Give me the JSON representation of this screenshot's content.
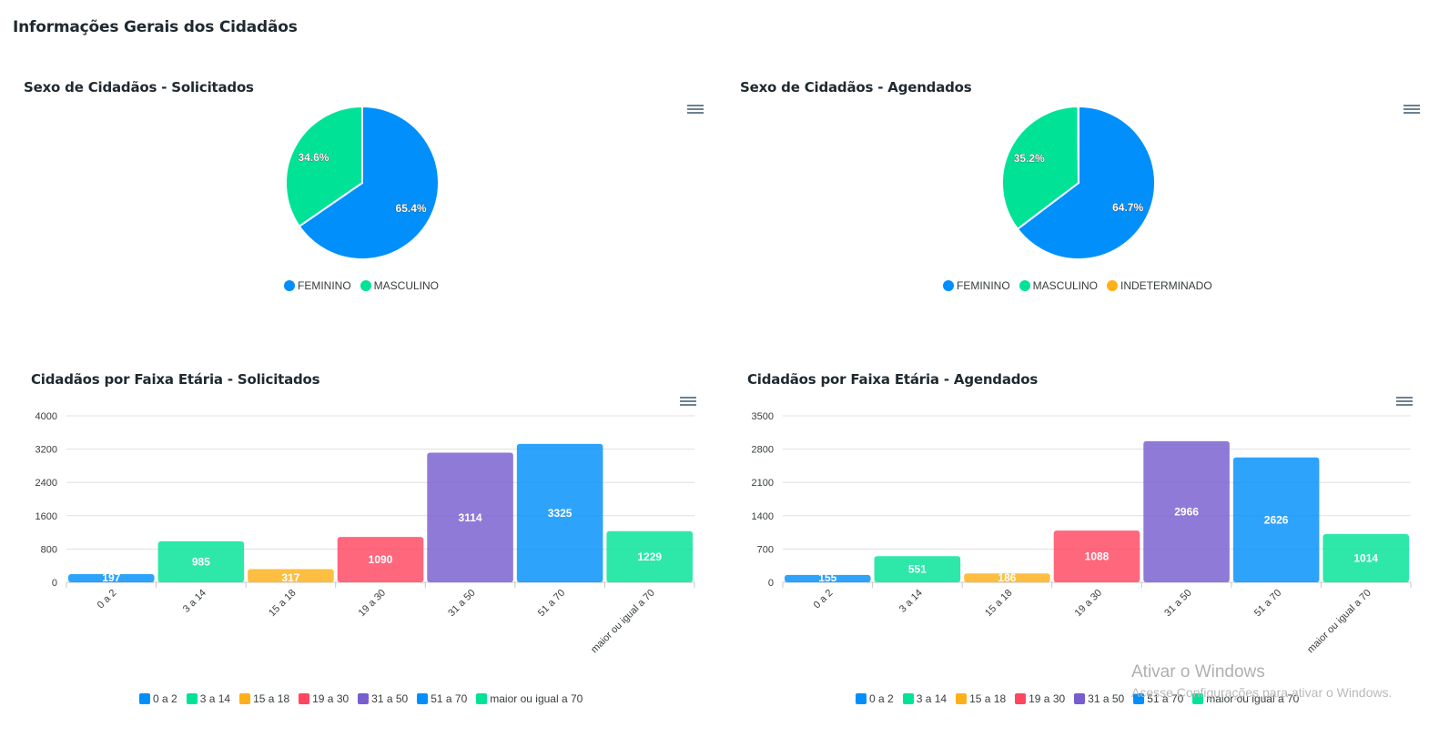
{
  "page_title": "Informações Gerais dos Cidadãos",
  "watermark": {
    "title": "Ativar o Windows",
    "subtitle": "Acesse Configurações para ativar o Windows."
  },
  "chart_data": [
    {
      "id": "pie-solicitados",
      "type": "pie",
      "title": "Sexo de Cidadãos - Solicitados",
      "labels": [
        "FEMININO",
        "MASCULINO"
      ],
      "percentages": [
        65.4,
        34.6
      ],
      "data_labels": [
        "65.4%",
        "34.6%"
      ],
      "colors": [
        "#008ffb",
        "#00e396"
      ],
      "legend_position": "bottom"
    },
    {
      "id": "pie-agendados",
      "type": "pie",
      "title": "Sexo de Cidadãos - Agendados",
      "labels": [
        "FEMININO",
        "MASCULINO",
        "INDETERMINADO"
      ],
      "percentages": [
        64.7,
        35.2,
        0.1
      ],
      "data_labels": [
        "64.7%",
        "35.2%",
        ""
      ],
      "colors": [
        "#008ffb",
        "#00e396",
        "#feb019"
      ],
      "legend_position": "bottom"
    },
    {
      "id": "bar-solicitados",
      "type": "bar",
      "title": "Cidadãos por Faixa Etária - Solicitados",
      "categories": [
        "0 a 2",
        "3 a 14",
        "15 a 18",
        "19 a 30",
        "31 a 50",
        "51 a 70",
        "maior ou igual a 70"
      ],
      "values": [
        197,
        985,
        317,
        1090,
        3114,
        3325,
        1229
      ],
      "colors": [
        "#008ffb",
        "#00e396",
        "#feb019",
        "#ff4560",
        "#775dd0",
        "#008ffb",
        "#00e396"
      ],
      "yticks": [
        0,
        800,
        1600,
        2400,
        3200,
        4000
      ],
      "ylim": [
        0,
        4000
      ],
      "grid": true,
      "legend_position": "bottom"
    },
    {
      "id": "bar-agendados",
      "type": "bar",
      "title": "Cidadãos por Faixa Etária - Agendados",
      "categories": [
        "0 a 2",
        "3 a 14",
        "15 a 18",
        "19 a 30",
        "31 a 50",
        "51 a 70",
        "maior ou igual a 70"
      ],
      "values": [
        155,
        551,
        186,
        1088,
        2966,
        2626,
        1014
      ],
      "colors": [
        "#008ffb",
        "#00e396",
        "#feb019",
        "#ff4560",
        "#775dd0",
        "#008ffb",
        "#00e396"
      ],
      "yticks": [
        0,
        700,
        1400,
        2100,
        2800,
        3500
      ],
      "ylim": [
        0,
        3500
      ],
      "grid": true,
      "legend_position": "bottom"
    }
  ]
}
